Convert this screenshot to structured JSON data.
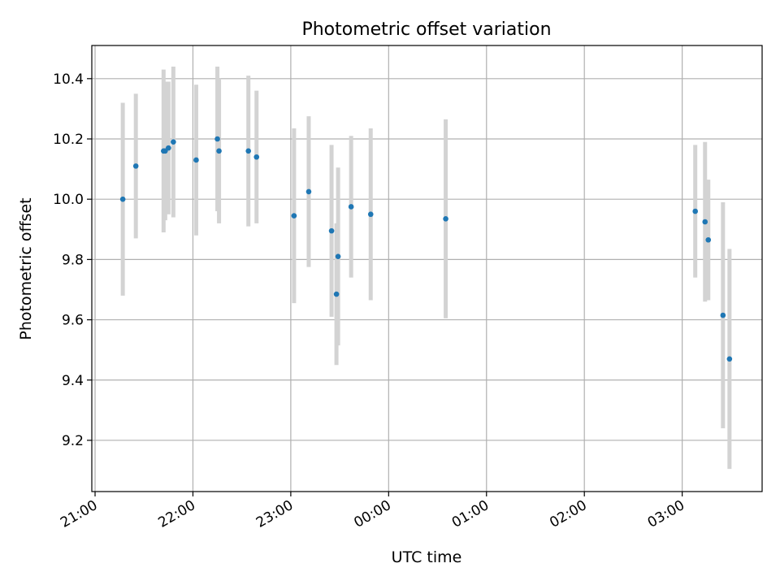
{
  "chart_data": {
    "type": "scatter",
    "title": "Photometric offset variation",
    "xlabel": "UTC time",
    "ylabel": "Photometric offset",
    "x_unit": "UTC time (hours, continuing past midnight)",
    "xlim": [
      "20:58",
      "03:49"
    ],
    "ylim": [
      9.03,
      10.51
    ],
    "x_ticks": [
      "21:00",
      "22:00",
      "23:00",
      "00:00",
      "01:00",
      "02:00",
      "03:00"
    ],
    "y_ticks": [
      9.2,
      9.4,
      9.6,
      9.8,
      10.0,
      10.2,
      10.4
    ],
    "grid": true,
    "colors": {
      "points": "#1f77b4",
      "error_bars": "#d3d3d3",
      "grid": "#b0b0b0"
    },
    "points": [
      {
        "time": "21:17",
        "y": 10.0,
        "yerr": 0.32
      },
      {
        "time": "21:25",
        "y": 10.11,
        "yerr": 0.24
      },
      {
        "time": "21:42",
        "y": 10.16,
        "yerr": 0.27
      },
      {
        "time": "21:43",
        "y": 10.16,
        "yerr": 0.23
      },
      {
        "time": "21:45",
        "y": 10.17,
        "yerr": 0.22
      },
      {
        "time": "21:48",
        "y": 10.19,
        "yerr": 0.25
      },
      {
        "time": "22:02",
        "y": 10.13,
        "yerr": 0.25
      },
      {
        "time": "22:15",
        "y": 10.2,
        "yerr": 0.24
      },
      {
        "time": "22:16",
        "y": 10.16,
        "yerr": 0.24
      },
      {
        "time": "22:34",
        "y": 10.16,
        "yerr": 0.25
      },
      {
        "time": "22:39",
        "y": 10.14,
        "yerr": 0.22
      },
      {
        "time": "23:02",
        "y": 9.945,
        "yerr": 0.29
      },
      {
        "time": "23:11",
        "y": 10.025,
        "yerr": 0.25
      },
      {
        "time": "23:25",
        "y": 9.895,
        "yerr": 0.285
      },
      {
        "time": "23:28",
        "y": 9.685,
        "yerr": 0.235
      },
      {
        "time": "23:29",
        "y": 9.81,
        "yerr": 0.295
      },
      {
        "time": "23:37",
        "y": 9.975,
        "yerr": 0.235
      },
      {
        "time": "23:49",
        "y": 9.95,
        "yerr": 0.285
      },
      {
        "time": "00:35",
        "y": 9.935,
        "yerr": 0.33
      },
      {
        "time": "03:08",
        "y": 9.96,
        "yerr": 0.22
      },
      {
        "time": "03:14",
        "y": 9.925,
        "yerr": 0.265
      },
      {
        "time": "03:16",
        "y": 9.865,
        "yerr": 0.2
      },
      {
        "time": "03:25",
        "y": 9.615,
        "yerr": 0.375
      },
      {
        "time": "03:29",
        "y": 9.47,
        "yerr": 0.365
      }
    ]
  }
}
